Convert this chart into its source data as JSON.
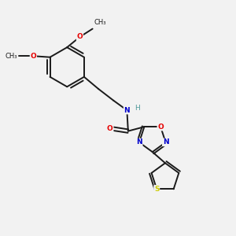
{
  "background_color": "#f2f2f2",
  "bond_color": "#1a1a1a",
  "figsize": [
    3.0,
    3.0
  ],
  "dpi": 100,
  "atom_colors": {
    "O": "#e60000",
    "N": "#0000cc",
    "S": "#cccc00",
    "H": "#4d9999",
    "C": "#1a1a1a"
  },
  "lw": 1.4,
  "fs": 6.5
}
